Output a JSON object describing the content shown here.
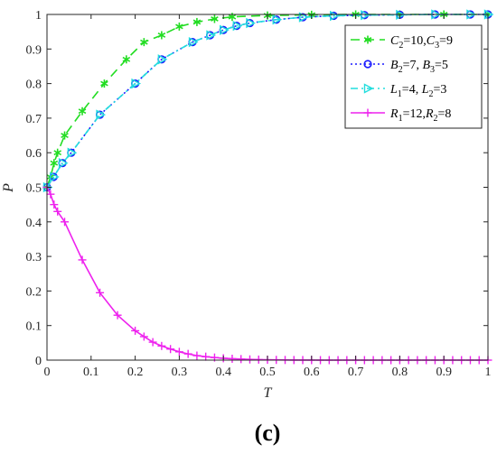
{
  "caption": "(c)",
  "chart_data": {
    "type": "line",
    "xlabel": "T",
    "ylabel": "P",
    "xlim": [
      0,
      1
    ],
    "ylim": [
      0,
      1
    ],
    "x_ticks": [
      "0",
      "0.1",
      "0.2",
      "0.3",
      "0.4",
      "0.5",
      "0.6",
      "0.7",
      "0.8",
      "0.9",
      "1"
    ],
    "y_ticks": [
      "0",
      "0.1",
      "0.2",
      "0.3",
      "0.4",
      "0.5",
      "0.6",
      "0.7",
      "0.8",
      "0.9",
      "1"
    ],
    "grid": false,
    "legend_position": "top-right",
    "series": [
      {
        "name": "C2=10,C3=9",
        "legend": [
          {
            "t": "C",
            "sub": "2"
          },
          {
            "t": "=10,C"
          },
          {
            "t": "C",
            "sub": "3"
          },
          {
            "t": "=9"
          }
        ],
        "color": "#22dd22",
        "dash": "10,6",
        "marker": "asterisk",
        "x": [
          0,
          0.008,
          0.016,
          0.024,
          0.04,
          0.08,
          0.13,
          0.18,
          0.22,
          0.26,
          0.3,
          0.34,
          0.38,
          0.42,
          0.5,
          0.6,
          0.7,
          0.8,
          0.9,
          1.0
        ],
        "y": [
          0.5,
          0.53,
          0.57,
          0.6,
          0.65,
          0.72,
          0.8,
          0.87,
          0.92,
          0.94,
          0.965,
          0.978,
          0.987,
          0.993,
          0.997,
          0.999,
          1.0,
          1.0,
          1.0,
          1.0
        ]
      },
      {
        "name": "B2=7, B3=5",
        "legend": [
          {
            "t": "B",
            "sub": "2"
          },
          {
            "t": "=7,  B"
          },
          {
            "t": "B",
            "sub": "3"
          },
          {
            "t": "=5"
          }
        ],
        "color": "#1a1aff",
        "dash": "2,3",
        "marker": "circle",
        "x": [
          0,
          0.015,
          0.035,
          0.055,
          0.12,
          0.2,
          0.26,
          0.33,
          0.37,
          0.4,
          0.43,
          0.46,
          0.52,
          0.58,
          0.65,
          0.72,
          0.8,
          0.88,
          0.96,
          1.0
        ],
        "y": [
          0.5,
          0.53,
          0.57,
          0.6,
          0.71,
          0.8,
          0.87,
          0.92,
          0.94,
          0.955,
          0.967,
          0.975,
          0.985,
          0.992,
          0.996,
          0.998,
          0.999,
          1.0,
          1.0,
          1.0
        ]
      },
      {
        "name": "L1=4, L2=3",
        "legend": [
          {
            "t": "L",
            "sub": "1"
          },
          {
            "t": "=4,  L"
          },
          {
            "t": "L",
            "sub": "2"
          },
          {
            "t": "=3"
          }
        ],
        "color": "#22dddd",
        "dash": "8,4,2,4",
        "marker": "triangle-right",
        "x": [
          0,
          0.015,
          0.035,
          0.055,
          0.12,
          0.2,
          0.26,
          0.33,
          0.37,
          0.4,
          0.43,
          0.46,
          0.52,
          0.58,
          0.65,
          0.72,
          0.8,
          0.88,
          0.96,
          1.0
        ],
        "y": [
          0.5,
          0.53,
          0.57,
          0.6,
          0.71,
          0.8,
          0.87,
          0.92,
          0.94,
          0.955,
          0.967,
          0.975,
          0.985,
          0.992,
          0.996,
          0.998,
          0.999,
          1.0,
          1.0,
          1.0
        ]
      },
      {
        "name": "R1=12,R2=8",
        "legend": [
          {
            "t": "R",
            "sub": "1"
          },
          {
            "t": "=12,R"
          },
          {
            "t": "R",
            "sub": "2"
          },
          {
            "t": "=8"
          }
        ],
        "color": "#ee22ee",
        "dash": "",
        "marker": "plus",
        "x": [
          0,
          0.008,
          0.016,
          0.024,
          0.04,
          0.08,
          0.12,
          0.16,
          0.2,
          0.22,
          0.24,
          0.26,
          0.28,
          0.3,
          0.32,
          0.34,
          0.36,
          0.38,
          0.4,
          0.42,
          0.44,
          0.46,
          0.48,
          0.5,
          0.52,
          0.54,
          0.56,
          0.58,
          0.6,
          0.62,
          0.64,
          0.66,
          0.68,
          0.7,
          0.72,
          0.74,
          0.76,
          0.78,
          0.8,
          0.82,
          0.84,
          0.86,
          0.88,
          0.9,
          0.92,
          0.94,
          0.96,
          0.98,
          1.0
        ],
        "y": [
          0.5,
          0.48,
          0.45,
          0.43,
          0.4,
          0.29,
          0.195,
          0.13,
          0.085,
          0.068,
          0.052,
          0.041,
          0.032,
          0.024,
          0.018,
          0.013,
          0.01,
          0.0075,
          0.0055,
          0.004,
          0.003,
          0.002,
          0.0015,
          0.001,
          0.0007,
          0.0005,
          0.0003,
          0.0002,
          0.0001,
          0,
          0,
          0,
          0,
          0,
          0,
          0,
          0,
          0,
          0,
          0,
          0,
          0,
          0,
          0,
          0,
          0,
          0,
          0,
          0
        ]
      }
    ]
  }
}
